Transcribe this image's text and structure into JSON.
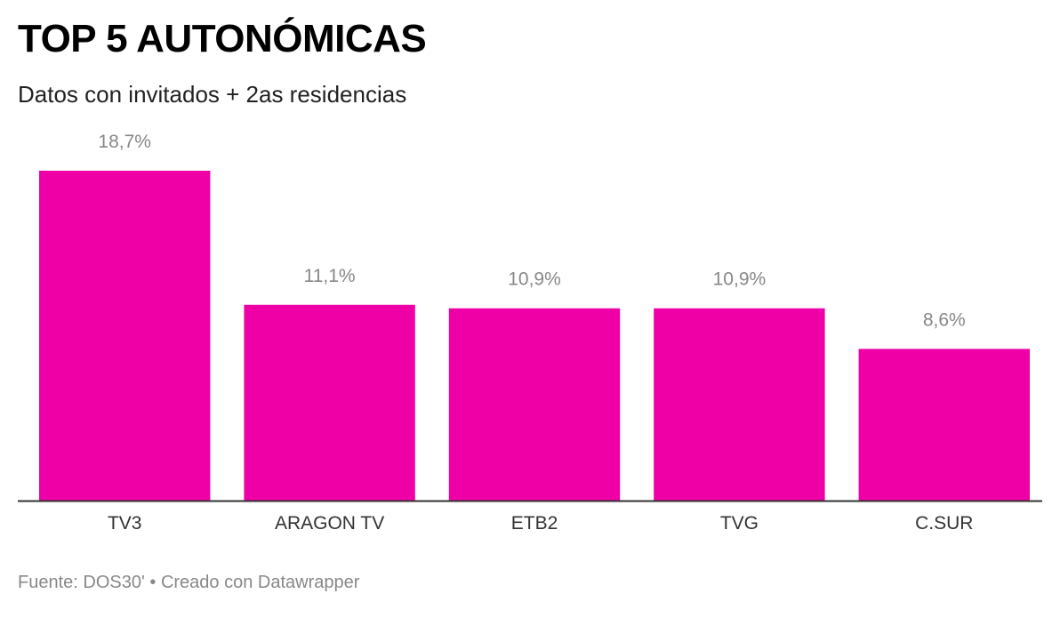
{
  "header": {
    "title": "TOP 5 AUTONÓMICAS",
    "subtitle": "Datos con invitados + 2as residencias"
  },
  "footer": {
    "source_label": "Fuente:",
    "source": "DOS30'",
    "separator": "•",
    "credit": "Creado con Datawrapper"
  },
  "colors": {
    "bar": "#ef00a6",
    "baseline": "#333333",
    "value_label": "#888888",
    "category_label": "#333333"
  },
  "chart_data": {
    "type": "bar",
    "title": "TOP 5 AUTONÓMICAS",
    "subtitle": "Datos con invitados + 2as residencias",
    "categories": [
      "TV3",
      "ARAGON TV",
      "ETB2",
      "TVG",
      "C.SUR"
    ],
    "values": [
      18.7,
      11.1,
      10.9,
      10.9,
      8.6
    ],
    "value_labels": [
      "18,7%",
      "11,1%",
      "10,9%",
      "10,9%",
      "8,6%"
    ],
    "unit": "%",
    "ylim": [
      0,
      18.7
    ],
    "grid": false,
    "legend": "none"
  }
}
